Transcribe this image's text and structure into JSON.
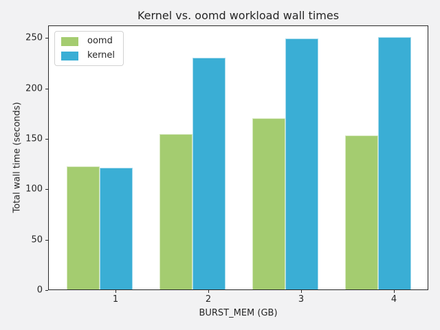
{
  "window": {
    "background_color": "#f2f2f3",
    "plot_background_color": "#ffffff"
  },
  "chart_data": {
    "type": "bar",
    "title": "Kernel vs. oomd workload wall times",
    "xlabel": "BURST_MEM (GB)",
    "ylabel": "Total wall time (seconds)",
    "categories": [
      "1",
      "2",
      "3",
      "4"
    ],
    "series": [
      {
        "name": "oomd",
        "color": "#a4cc70",
        "values": [
          122,
          154,
          170,
          153
        ]
      },
      {
        "name": "kernel",
        "color": "#3aaed5",
        "values": [
          121,
          230,
          249,
          250
        ]
      }
    ],
    "yticks": [
      0,
      50,
      100,
      150,
      200,
      250
    ],
    "ylim": [
      0,
      262.5
    ],
    "grid": false,
    "legend_position": "upper left"
  }
}
